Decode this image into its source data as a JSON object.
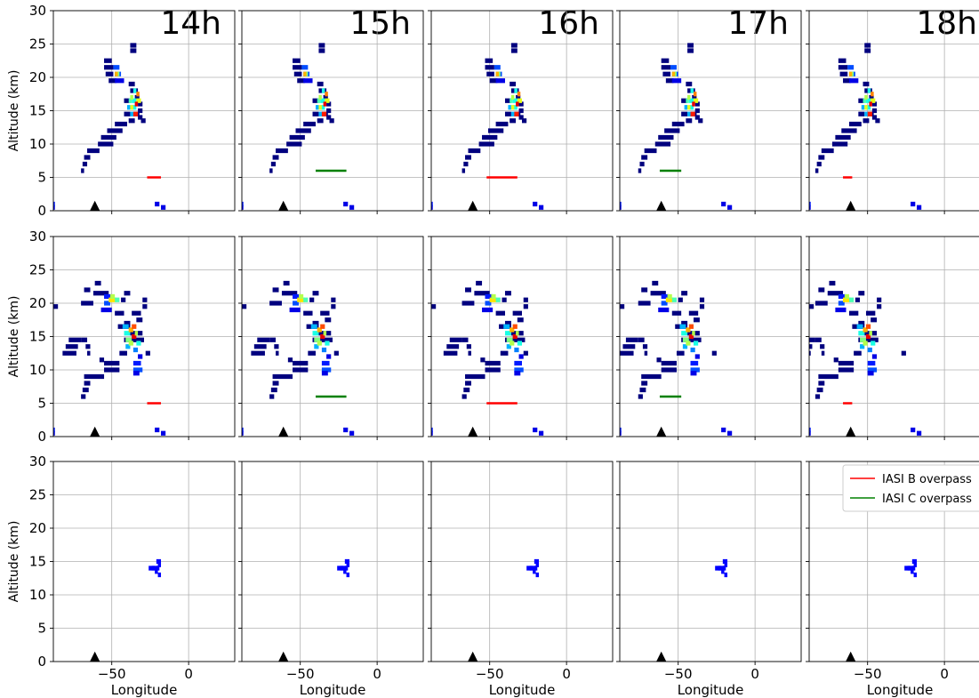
{
  "chart_data": {
    "type": "heatmap",
    "column_titles": [
      "14h",
      "15h",
      "16h",
      "17h",
      "18h"
    ],
    "xlabel": "Longitude",
    "ylabel": "Altitude (km)",
    "xlim": [
      -88,
      30
    ],
    "ylim": [
      0,
      30
    ],
    "xticks": [
      -50,
      0
    ],
    "xtick_labels": [
      "−50",
      "0"
    ],
    "yticks": [
      0,
      5,
      10,
      15,
      20,
      25,
      30
    ],
    "grid": true,
    "colormap": "jet",
    "marker": {
      "label": "volcano",
      "lon": -61,
      "alt": 0.7,
      "shape": "triangle",
      "color": "#000000"
    },
    "legend": {
      "placement": "top-right of bottom-right panel",
      "entries": [
        {
          "label": "IASI B overpass",
          "color": "#ff0000"
        },
        {
          "label": "IASI C overpass",
          "color": "#008000"
        }
      ]
    },
    "overpass": [
      {
        "series": "IASI B overpass",
        "color": "#ff0000",
        "alt": 5,
        "lon": [
          -27,
          -18
        ]
      },
      {
        "series": "IASI C overpass",
        "color": "#008000",
        "alt": 6,
        "lon": [
          -40,
          -20
        ]
      },
      {
        "series": "IASI B overpass",
        "color": "#ff0000",
        "alt": 5,
        "lon": [
          -52,
          -32
        ]
      },
      {
        "series": "IASI C overpass",
        "color": "#008000",
        "alt": 6,
        "lon": [
          -62,
          -48
        ]
      },
      {
        "series": "IASI B overpass",
        "color": "#ff0000",
        "alt": 5,
        "lon": [
          -66,
          -60
        ]
      }
    ],
    "rows": [
      {
        "name": "row-1",
        "offsets": [
          0,
          0,
          2,
          -6,
          -14
        ],
        "cells": [
          [
            -90,
            -87,
            0.5,
            0.1
          ],
          [
            -90,
            -87,
            1.0,
            0.15
          ],
          [
            -18,
            -15,
            0.5,
            0.1
          ],
          [
            -22,
            -19,
            1.0,
            0.1
          ],
          [
            -70,
            -68,
            6.0,
            0.05
          ],
          [
            -69,
            -66,
            7.0,
            0.05
          ],
          [
            -68,
            -64,
            8.0,
            0.05
          ],
          [
            -66,
            -58,
            9.0,
            0.05
          ],
          [
            -59,
            -49,
            10.0,
            0.05
          ],
          [
            -57,
            -47,
            11.0,
            0.05
          ],
          [
            -53,
            -43,
            12.0,
            0.05
          ],
          [
            -48,
            -40,
            13.0,
            0.05
          ],
          [
            -39,
            -35,
            13.5,
            0.05
          ],
          [
            -42,
            -38,
            14.5,
            0.05
          ],
          [
            -36,
            -32,
            14.5,
            0.05
          ],
          [
            -42,
            -38,
            16.5,
            0.05
          ],
          [
            -31,
            -28,
            13.5,
            0.05
          ],
          [
            -33,
            -30,
            14.0,
            0.05
          ],
          [
            -33,
            -30,
            15.0,
            0.05
          ],
          [
            -33,
            -30,
            16.0,
            0.05
          ],
          [
            -35,
            -32,
            17.0,
            0.05
          ],
          [
            -38,
            -33,
            18.0,
            0.05
          ],
          [
            -39,
            -35,
            19.0,
            0.05
          ],
          [
            -38,
            -34,
            14.5,
            0.3
          ],
          [
            -37,
            -34,
            15.5,
            0.4
          ],
          [
            -37,
            -34,
            16.5,
            0.4
          ],
          [
            -34,
            -32,
            17.5,
            0.75
          ],
          [
            -34,
            -31,
            16.5,
            0.6
          ],
          [
            -52,
            -47,
            19.5,
            0.05
          ],
          [
            -54,
            -49,
            20.5,
            0.05
          ],
          [
            -55,
            -49,
            21.5,
            0.05
          ],
          [
            -55,
            -50,
            22.5,
            0.05
          ],
          [
            -48,
            -42,
            19.5,
            0.1
          ],
          [
            -48,
            -44,
            20.5,
            0.2
          ],
          [
            -49,
            -45,
            21.5,
            0.2
          ],
          [
            -47,
            -45,
            20.5,
            0.5
          ],
          [
            -48,
            -46,
            20.5,
            0.7
          ],
          [
            -40,
            -38,
            15.5,
            0.3
          ],
          [
            -39,
            -37,
            16.5,
            0.45
          ],
          [
            -36,
            -33,
            14.5,
            0.85
          ],
          [
            -35,
            -33,
            16.0,
            0.9
          ],
          [
            -38,
            -36,
            15.5,
            0.6
          ],
          [
            -38,
            -36,
            17.0,
            0.55
          ],
          [
            -36,
            -34,
            18.0,
            0.4
          ],
          [
            -38,
            -34,
            24.0,
            0.05
          ],
          [
            -38,
            -34,
            24.8,
            0.05
          ]
        ]
      },
      {
        "name": "row-2",
        "offsets": [
          0,
          0,
          2,
          -6,
          -14
        ],
        "cells": [
          [
            -90,
            -87,
            0.5,
            0.1
          ],
          [
            -90,
            -87,
            1.0,
            0.15
          ],
          [
            -18,
            -15,
            0.5,
            0.1
          ],
          [
            -22,
            -19,
            1.0,
            0.1
          ],
          [
            -89,
            -85,
            19.5,
            0.05
          ],
          [
            -70,
            -67,
            6.0,
            0.05
          ],
          [
            -69,
            -65,
            7.0,
            0.05
          ],
          [
            -68,
            -64,
            8.0,
            0.05
          ],
          [
            -68,
            -55,
            9.0,
            0.05
          ],
          [
            -55,
            -45,
            10.0,
            0.05
          ],
          [
            -55,
            -45,
            11.0,
            0.05
          ],
          [
            -58,
            -55,
            11.5,
            0.05
          ],
          [
            -45,
            -40,
            12.5,
            0.05
          ],
          [
            -28,
            -25,
            12.5,
            0.05
          ],
          [
            -42,
            -38,
            17.0,
            0.05
          ],
          [
            -82,
            -73,
            12.5,
            0.05
          ],
          [
            -80,
            -72,
            13.5,
            0.05
          ],
          [
            -78,
            -70,
            14.5,
            0.05
          ],
          [
            -70,
            -66,
            14.5,
            0.05
          ],
          [
            -67,
            -64,
            13.5,
            0.05
          ],
          [
            -66,
            -64,
            12.5,
            0.05
          ],
          [
            -42,
            -29,
            14.5,
            0.05
          ],
          [
            -38,
            -30,
            15.5,
            0.05
          ],
          [
            -46,
            -38,
            16.5,
            0.05
          ],
          [
            -34,
            -30,
            17.5,
            0.05
          ],
          [
            -37,
            -31,
            18.5,
            0.05
          ],
          [
            -30,
            -27,
            19.5,
            0.05
          ],
          [
            -30,
            -27,
            20.5,
            0.05
          ],
          [
            -44,
            -41,
            20.5,
            0.05
          ],
          [
            -42,
            -38,
            21.5,
            0.05
          ],
          [
            -48,
            -42,
            18.5,
            0.05
          ],
          [
            -62,
            -52,
            21.5,
            0.05
          ],
          [
            -68,
            -64,
            22.0,
            0.05
          ],
          [
            -70,
            -62,
            20.0,
            0.05
          ],
          [
            -55,
            -50,
            21.0,
            0.15
          ],
          [
            -55,
            -51,
            20.0,
            0.2
          ],
          [
            -57,
            -50,
            19.0,
            0.1
          ],
          [
            -52,
            -47,
            20.5,
            0.65
          ],
          [
            -51,
            -48,
            21.0,
            0.55
          ],
          [
            -48,
            -45,
            20.5,
            0.45
          ],
          [
            -43,
            -39,
            16.5,
            0.3
          ],
          [
            -42,
            -38,
            15.5,
            0.4
          ],
          [
            -41,
            -37,
            14.5,
            0.5
          ],
          [
            -41,
            -38,
            13.5,
            0.3
          ],
          [
            -39,
            -36,
            16.0,
            0.7
          ],
          [
            -37,
            -34,
            15.0,
            0.9
          ],
          [
            -37,
            -34,
            16.5,
            0.8
          ],
          [
            -39,
            -36,
            14.0,
            0.55
          ],
          [
            -35,
            -33,
            15.5,
            0.55
          ],
          [
            -34,
            -31,
            14.0,
            0.4
          ],
          [
            -36,
            -33,
            13.0,
            0.25
          ],
          [
            -33,
            -30,
            12.0,
            0.1
          ],
          [
            -36,
            -31,
            11.0,
            0.15
          ],
          [
            -36,
            -30,
            10.0,
            0.2
          ],
          [
            -36,
            -32,
            9.5,
            0.1
          ],
          [
            -61,
            -57,
            23.0,
            0.05
          ]
        ]
      },
      {
        "name": "row-3",
        "offsets": [
          0,
          -8,
          -20,
          -25,
          -40
        ],
        "cells": [
          [
            -20,
            -18,
            13.0,
            0.1
          ],
          [
            -21,
            -19,
            14.0,
            0.1
          ],
          [
            -21,
            -18,
            15.0,
            0.1
          ],
          [
            -26,
            -20,
            14.0,
            0.1
          ],
          [
            -24,
            -22,
            14.0,
            0.1
          ],
          [
            -20,
            -18,
            14.5,
            0.1
          ],
          [
            -22,
            -20,
            13.5,
            0.1
          ]
        ]
      }
    ]
  }
}
